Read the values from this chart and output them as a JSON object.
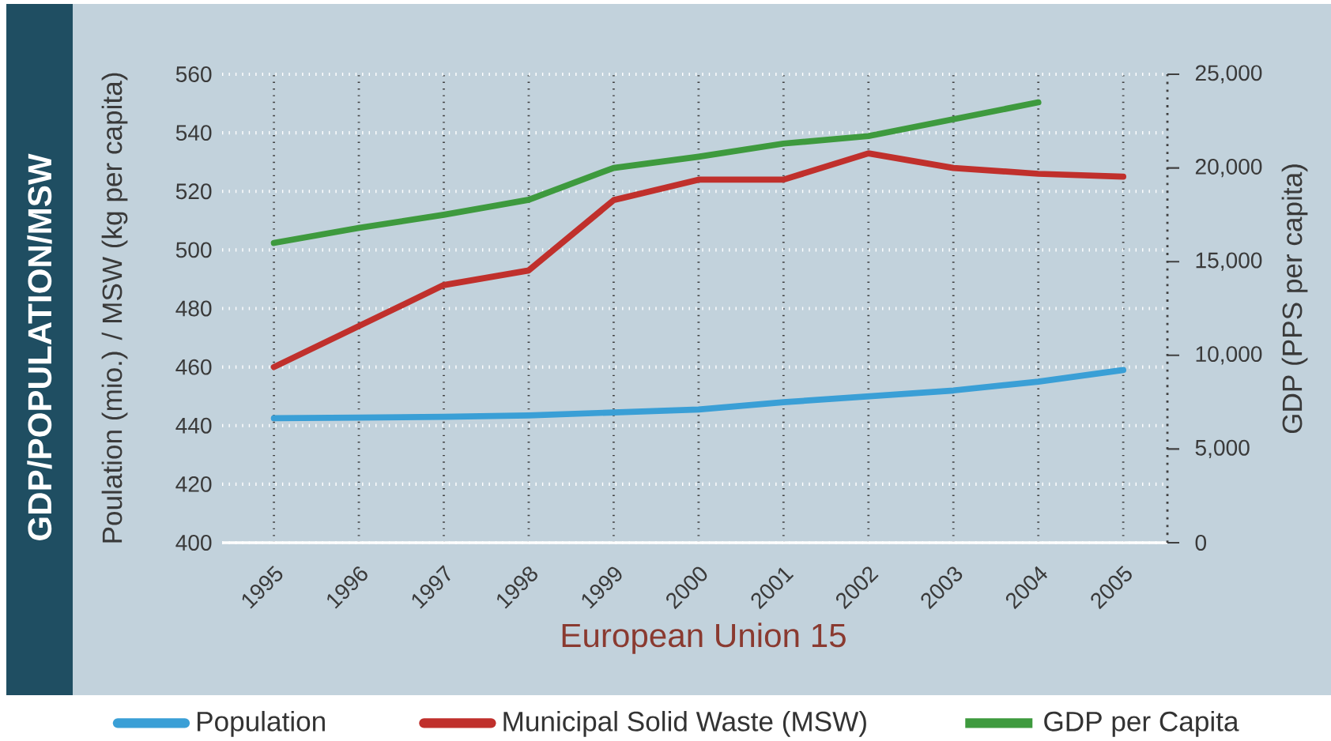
{
  "chart_data": {
    "type": "line",
    "title": "GDP/POPULATION/MSW",
    "xlabel": "European Union 15",
    "ylabel": "Poulation (mio.) / MSW (kg per capita)",
    "y2label": "GDP (PPS per capita)",
    "categories": [
      "1995",
      "1996",
      "1997",
      "1998",
      "1999",
      "2000",
      "2001",
      "2002",
      "2003",
      "2004",
      "2005"
    ],
    "series": [
      {
        "name": "Population",
        "color": "#3a9fd6",
        "values": [
          442.5,
          442.7,
          443,
          443.5,
          444.5,
          445.5,
          448,
          450,
          452,
          455,
          459
        ]
      },
      {
        "name": "Municipal Solid Waste (MSW)",
        "color": "#c0302c",
        "values": [
          460,
          474,
          488,
          493,
          517,
          524,
          524,
          533,
          528,
          526,
          525
        ]
      },
      {
        "name": "GDP per Capita",
        "color": "#3e9a3e",
        "axis": "y2",
        "values": [
          16000,
          16800,
          17500,
          18300,
          20000,
          20600,
          21300,
          21700,
          22600,
          23500,
          null
        ]
      }
    ],
    "ylim": [
      400,
      560
    ],
    "yticks": [
      400,
      420,
      440,
      460,
      480,
      500,
      520,
      540,
      560
    ],
    "y2lim": [
      0,
      25000
    ],
    "y2ticks": [
      0,
      {
        "value": 5000,
        "label": "5,000"
      },
      {
        "value": 10000,
        "label": "10,000"
      },
      {
        "value": 15000,
        "label": "15,000"
      },
      {
        "value": 20000,
        "label": "20,000"
      },
      {
        "value": 25000,
        "label": "25,000"
      }
    ],
    "grid": true,
    "legend": "bottom"
  }
}
